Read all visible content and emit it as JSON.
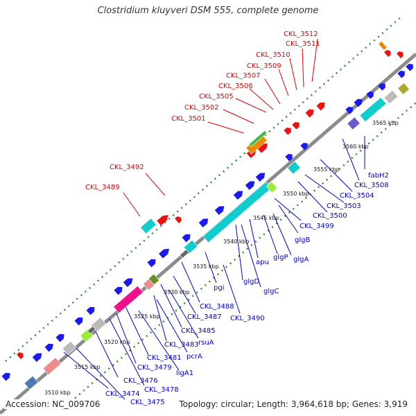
{
  "title": "Clostridium kluyveri DSM 555, complete genome",
  "accession_label": "Accession: NC_009706",
  "summary_label": "Topology: circular; Length: 3,964,618 bp; Genes: 3,919",
  "colors": {
    "backbone": "#8c8c8c",
    "tick_dots": "#2e8b2e",
    "label_red": "#e00000",
    "label_blue": "#0000cc",
    "gene_blue": "#1a1aee",
    "gene_red": "#ee1111",
    "gene_cyan": "#11cccc",
    "gene_green": "#33cc33",
    "gene_gray": "#bbbbbb",
    "gene_pink": "#ee1188"
  },
  "scale_ticks": [
    "3510 kbp",
    "3515 kbp",
    "3520 kbp",
    "3525 kbp",
    "3530 kbp",
    "3535 kbp",
    "3540 kbp",
    "3545 kbp",
    "3550 kbp",
    "3555 kbp",
    "3560 kbp",
    "3565 kbp"
  ],
  "red_labels": [
    "CKL_3512",
    "CKL_3511",
    "CKL_3510",
    "CKL_3509",
    "CKL_3507",
    "CKL_3506",
    "CKL_3505",
    "CKL_3502",
    "CKL_3501",
    "CKL_3492",
    "CKL_3489"
  ],
  "blue_labels": [
    "fabH2",
    "CKL_3508",
    "CKL_3504",
    "CKL_3503",
    "CKL_3500",
    "CKL_3499",
    "glgB",
    "glgA",
    "glgP",
    "apu",
    "glgD",
    "glgC",
    "pgi",
    "CKL_3488",
    "CKL_3487",
    "CKL_3490",
    "CKL_3485",
    "rsuA",
    "CKL_3483",
    "pcrA",
    "CKL_3481",
    "ligA1",
    "CKL_3479",
    "CKL_3476",
    "CKL_3478",
    "CKL_3474",
    "CKL_3475"
  ]
}
